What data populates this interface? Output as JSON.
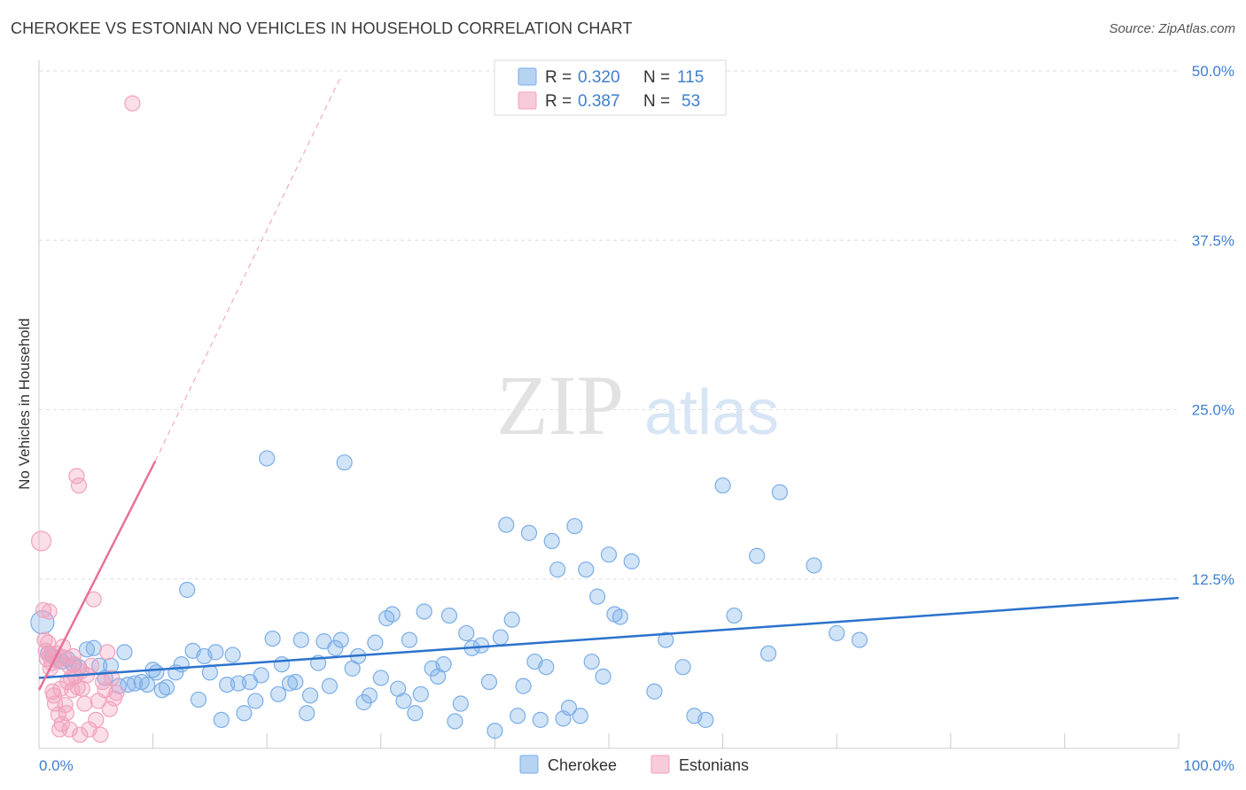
{
  "chart_data": {
    "type": "scatter",
    "title": "CHEROKEE VS ESTONIAN NO VEHICLES IN HOUSEHOLD CORRELATION CHART",
    "source": "Source: ZipAtlas.com",
    "ylabel": "No Vehicles in Household",
    "xlim": [
      0,
      100
    ],
    "ylim": [
      0,
      50
    ],
    "y_ticks": [
      {
        "value": 12.5,
        "label": "12.5%"
      },
      {
        "value": 25.0,
        "label": "25.0%"
      },
      {
        "value": 37.5,
        "label": "37.5%"
      },
      {
        "value": 50.0,
        "label": "50.0%"
      }
    ],
    "x_tick_labels": {
      "min": "0.0%",
      "max": "100.0%"
    },
    "watermark": {
      "zip": "ZIP",
      "atlas": "atlas"
    },
    "legend_stats": [
      {
        "r_label": "R = ",
        "r": "0.320",
        "n_label": "N = ",
        "n": "115"
      },
      {
        "r_label": "R = ",
        "r": "0.387",
        "n_label": "N = ",
        "n": "53"
      }
    ],
    "series": [
      {
        "name": "Cherokee",
        "color": "#7aaee8",
        "line_color": "#2b72cc",
        "trend": {
          "x": [
            0,
            100
          ],
          "y": [
            5.2,
            11.1
          ]
        },
        "points": [
          [
            0.3,
            9.3
          ],
          [
            0.8,
            7.0
          ],
          [
            1.2,
            6.8
          ],
          [
            1.6,
            6.5
          ],
          [
            2.0,
            6.4
          ],
          [
            2.5,
            6.6
          ],
          [
            3.0,
            6.2
          ],
          [
            3.5,
            6.0
          ],
          [
            4.2,
            7.3
          ],
          [
            4.8,
            7.4
          ],
          [
            5.3,
            6.1
          ],
          [
            5.8,
            5.2
          ],
          [
            6.3,
            6.1
          ],
          [
            7.0,
            4.6
          ],
          [
            7.5,
            7.1
          ],
          [
            7.8,
            4.7
          ],
          [
            8.4,
            4.8
          ],
          [
            9.0,
            4.9
          ],
          [
            9.5,
            4.7
          ],
          [
            10.0,
            5.8
          ],
          [
            10.3,
            5.6
          ],
          [
            10.8,
            4.3
          ],
          [
            11.2,
            4.5
          ],
          [
            12.0,
            5.6
          ],
          [
            12.5,
            6.2
          ],
          [
            13.0,
            11.7
          ],
          [
            13.5,
            7.2
          ],
          [
            14.0,
            3.6
          ],
          [
            14.5,
            6.8
          ],
          [
            15.0,
            5.6
          ],
          [
            15.5,
            7.1
          ],
          [
            16.0,
            2.1
          ],
          [
            16.5,
            4.7
          ],
          [
            17.0,
            6.9
          ],
          [
            17.5,
            4.8
          ],
          [
            18.0,
            2.6
          ],
          [
            18.5,
            4.9
          ],
          [
            19.0,
            3.5
          ],
          [
            19.5,
            5.4
          ],
          [
            20.0,
            21.4
          ],
          [
            20.5,
            8.1
          ],
          [
            21.0,
            4.0
          ],
          [
            21.3,
            6.2
          ],
          [
            22.0,
            4.8
          ],
          [
            22.5,
            4.9
          ],
          [
            23.0,
            8.0
          ],
          [
            23.5,
            2.6
          ],
          [
            23.8,
            3.9
          ],
          [
            24.5,
            6.3
          ],
          [
            25.0,
            7.9
          ],
          [
            25.5,
            4.6
          ],
          [
            26.0,
            7.4
          ],
          [
            26.5,
            8.0
          ],
          [
            26.8,
            21.1
          ],
          [
            27.5,
            5.9
          ],
          [
            28.0,
            6.8
          ],
          [
            28.5,
            3.4
          ],
          [
            29.0,
            3.9
          ],
          [
            29.5,
            7.8
          ],
          [
            30.0,
            5.2
          ],
          [
            30.5,
            9.6
          ],
          [
            31.0,
            9.9
          ],
          [
            31.5,
            4.4
          ],
          [
            32.0,
            3.5
          ],
          [
            32.5,
            8.0
          ],
          [
            33.0,
            2.6
          ],
          [
            33.5,
            4.0
          ],
          [
            33.8,
            10.1
          ],
          [
            34.5,
            5.9
          ],
          [
            35.0,
            5.3
          ],
          [
            35.5,
            6.2
          ],
          [
            36.0,
            9.8
          ],
          [
            36.5,
            2.0
          ],
          [
            37.0,
            3.3
          ],
          [
            37.5,
            8.5
          ],
          [
            38.0,
            7.4
          ],
          [
            38.8,
            7.6
          ],
          [
            39.5,
            4.9
          ],
          [
            40.0,
            1.3
          ],
          [
            40.5,
            8.2
          ],
          [
            41.0,
            16.5
          ],
          [
            41.5,
            9.5
          ],
          [
            42.0,
            2.4
          ],
          [
            42.5,
            4.6
          ],
          [
            43.0,
            15.9
          ],
          [
            43.5,
            6.4
          ],
          [
            44.0,
            2.1
          ],
          [
            44.5,
            6.0
          ],
          [
            45.0,
            15.3
          ],
          [
            45.5,
            13.2
          ],
          [
            46.0,
            2.2
          ],
          [
            46.5,
            3.0
          ],
          [
            47.0,
            16.4
          ],
          [
            47.5,
            2.4
          ],
          [
            48.0,
            13.2
          ],
          [
            48.5,
            6.4
          ],
          [
            49.0,
            11.2
          ],
          [
            49.5,
            5.3
          ],
          [
            50.0,
            14.3
          ],
          [
            50.5,
            9.9
          ],
          [
            51.0,
            9.7
          ],
          [
            52.0,
            13.8
          ],
          [
            54.0,
            4.2
          ],
          [
            55.0,
            8.0
          ],
          [
            56.5,
            6.0
          ],
          [
            57.5,
            2.4
          ],
          [
            58.5,
            2.1
          ],
          [
            60.0,
            19.4
          ],
          [
            61.0,
            9.8
          ],
          [
            63.0,
            14.2
          ],
          [
            64.0,
            7.0
          ],
          [
            65.0,
            18.9
          ],
          [
            68.0,
            13.5
          ],
          [
            70.0,
            8.5
          ],
          [
            72.0,
            8.0
          ]
        ]
      },
      {
        "name": "Estonians",
        "color": "#f2a1bc",
        "line_color": "#e8719a",
        "trend": {
          "x": [
            0,
            10.2
          ],
          "y": [
            4.3,
            21.2
          ]
        },
        "trend_ext": {
          "x": [
            10.2,
            26.5
          ],
          "y": [
            21.2,
            49.6
          ]
        },
        "points": [
          [
            0.2,
            15.3
          ],
          [
            0.4,
            10.2
          ],
          [
            0.5,
            8.0
          ],
          [
            0.6,
            7.2
          ],
          [
            0.7,
            6.6
          ],
          [
            0.8,
            7.8
          ],
          [
            0.9,
            10.1
          ],
          [
            1.0,
            6.9
          ],
          [
            1.1,
            6.3
          ],
          [
            1.2,
            4.2
          ],
          [
            1.3,
            3.9
          ],
          [
            1.4,
            3.3
          ],
          [
            1.5,
            7.0
          ],
          [
            1.6,
            6.5
          ],
          [
            1.7,
            2.5
          ],
          [
            1.8,
            1.4
          ],
          [
            1.9,
            4.4
          ],
          [
            2.0,
            1.8
          ],
          [
            2.1,
            7.5
          ],
          [
            2.2,
            6.7
          ],
          [
            2.3,
            3.2
          ],
          [
            2.4,
            2.6
          ],
          [
            2.5,
            4.9
          ],
          [
            2.6,
            6.1
          ],
          [
            2.7,
            1.4
          ],
          [
            2.8,
            5.2
          ],
          [
            2.9,
            4.3
          ],
          [
            3.0,
            6.8
          ],
          [
            3.1,
            6.2
          ],
          [
            3.2,
            5.3
          ],
          [
            3.3,
            20.1
          ],
          [
            3.4,
            4.5
          ],
          [
            3.5,
            19.4
          ],
          [
            3.6,
            1.0
          ],
          [
            3.7,
            5.7
          ],
          [
            3.8,
            4.4
          ],
          [
            4.0,
            3.3
          ],
          [
            4.2,
            5.4
          ],
          [
            4.4,
            1.4
          ],
          [
            4.6,
            6.1
          ],
          [
            4.8,
            11.0
          ],
          [
            5.0,
            2.1
          ],
          [
            5.2,
            3.5
          ],
          [
            5.4,
            1.0
          ],
          [
            5.6,
            4.9
          ],
          [
            5.8,
            4.3
          ],
          [
            6.0,
            7.1
          ],
          [
            6.2,
            2.9
          ],
          [
            6.4,
            5.2
          ],
          [
            6.6,
            3.7
          ],
          [
            6.8,
            4.1
          ],
          [
            8.2,
            47.6
          ],
          [
            1.0,
            5.9
          ]
        ]
      }
    ]
  }
}
